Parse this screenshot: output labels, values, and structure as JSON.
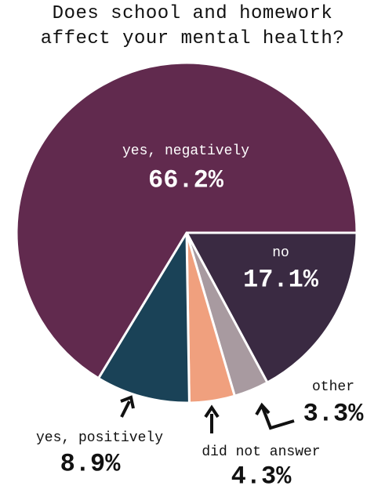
{
  "chart_data": {
    "type": "pie",
    "title": "Does school and homework affect your mental health?",
    "categories": [
      "no",
      "other",
      "did not answer",
      "yes, positively",
      "yes, negatively"
    ],
    "values": [
      17.1,
      3.3,
      4.3,
      8.9,
      66.2
    ],
    "value_labels": [
      "17.1%",
      "3.3%",
      "4.3%",
      "8.9%",
      "66.2%"
    ],
    "colors": [
      "#3a2a42",
      "#a89aa0",
      "#f0a07e",
      "#1a4257",
      "#612a4e"
    ]
  }
}
